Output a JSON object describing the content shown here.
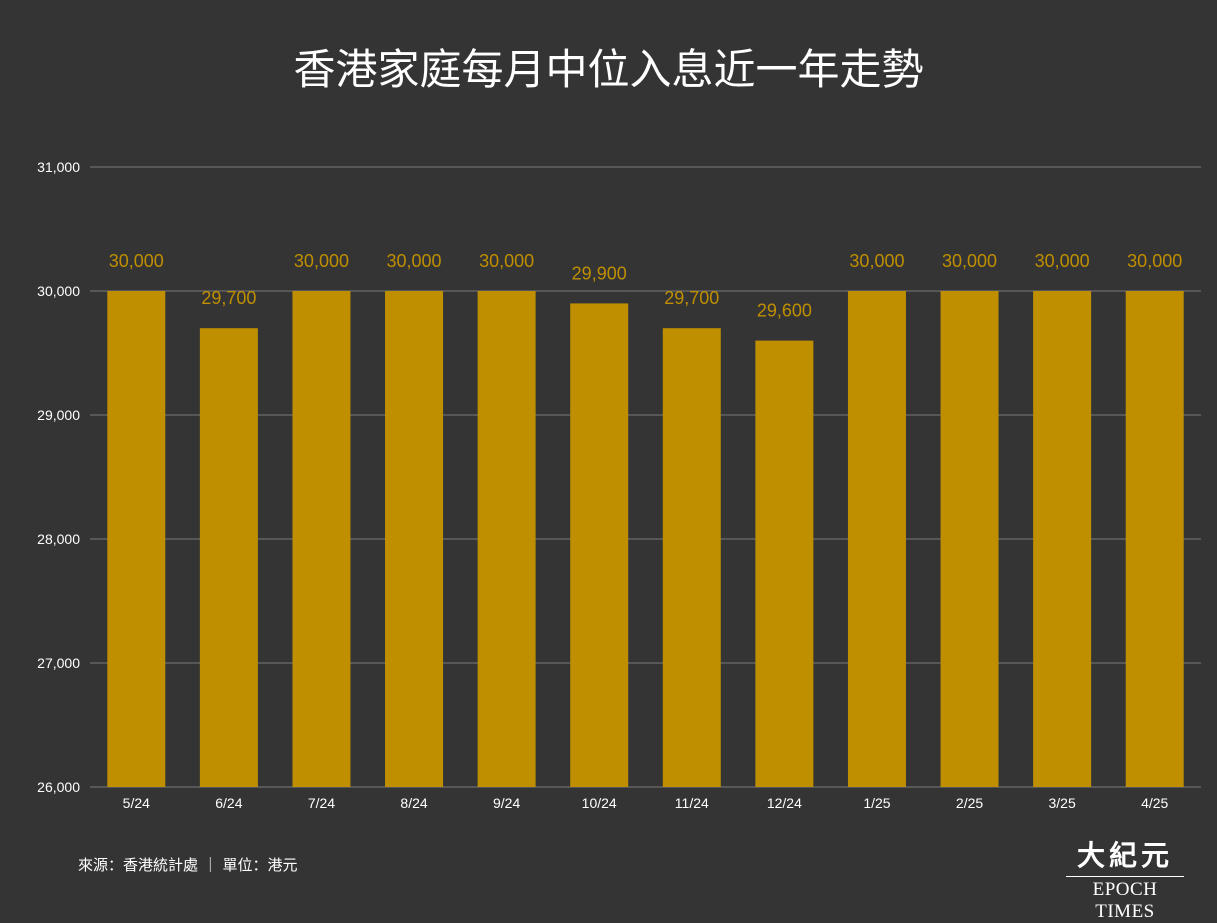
{
  "title": "香港家庭每月中位入息近一年走勢",
  "source_note": "來源：香港統計處 ｜ 單位：港元",
  "logo": {
    "cn": "大紀元",
    "en": "EPOCH TIMES"
  },
  "colors": {
    "background": "#343434",
    "bar": "#BF8F00",
    "data_label": "#BF8F00",
    "grid": "#7a7a7a",
    "text": "#ffffff"
  },
  "chart_data": {
    "type": "bar",
    "categories": [
      "5/24",
      "6/24",
      "7/24",
      "8/24",
      "9/24",
      "10/24",
      "11/24",
      "12/24",
      "1/25",
      "2/25",
      "3/25",
      "4/25"
    ],
    "values": [
      30000,
      29700,
      30000,
      30000,
      30000,
      29900,
      29700,
      29600,
      30000,
      30000,
      30000,
      30000
    ],
    "data_labels": [
      "30,000",
      "29,700",
      "30,000",
      "30,000",
      "30,000",
      "29,900",
      "29,700",
      "29,600",
      "30,000",
      "30,000",
      "30,000",
      "30,000"
    ],
    "ylim": [
      26000,
      31000
    ],
    "yticks": [
      26000,
      27000,
      28000,
      29000,
      30000,
      31000
    ],
    "ytick_labels": [
      "26,000",
      "27,000",
      "28,000",
      "29,000",
      "30,000",
      "31,000"
    ],
    "grid": true,
    "legend": "none"
  }
}
